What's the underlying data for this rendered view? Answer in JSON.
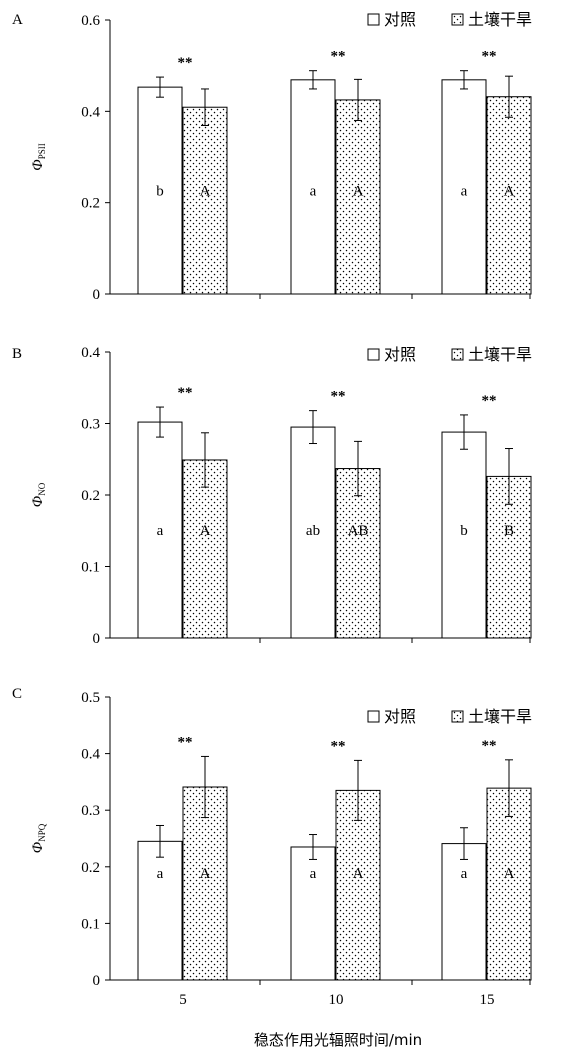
{
  "chart_data": [
    {
      "type": "bar",
      "panel": "A",
      "ylabel": "Φ",
      "ylabel_sub": "PSII",
      "ylim": [
        0,
        0.6
      ],
      "yticks": [
        "0",
        "0.2",
        "0.4",
        "0.6"
      ],
      "categories": [
        "5",
        "10",
        "15"
      ],
      "legend": [
        "对照",
        "土壤干旱"
      ],
      "series": [
        {
          "name": "对照",
          "values": [
            0.453,
            0.469,
            0.469
          ],
          "errors": [
            0.022,
            0.02,
            0.02
          ],
          "letters": [
            "b",
            "a",
            "a"
          ],
          "fill": "#ffffff"
        },
        {
          "name": "土壤干旱",
          "values": [
            0.409,
            0.425,
            0.432
          ],
          "errors": [
            0.04,
            0.045,
            0.045
          ],
          "letters": [
            "A",
            "A",
            "A"
          ],
          "fill": "dots"
        }
      ],
      "significance": [
        "**",
        "**",
        "**"
      ]
    },
    {
      "type": "bar",
      "panel": "B",
      "ylabel": "Φ",
      "ylabel_sub": "NO",
      "ylim": [
        0,
        0.4
      ],
      "yticks": [
        "0",
        "0.1",
        "0.2",
        "0.3",
        "0.4"
      ],
      "categories": [
        "5",
        "10",
        "15"
      ],
      "legend": [
        "对照",
        "土壤干旱"
      ],
      "series": [
        {
          "name": "对照",
          "values": [
            0.302,
            0.295,
            0.288
          ],
          "errors": [
            0.021,
            0.023,
            0.024
          ],
          "letters": [
            "a",
            "ab",
            "b"
          ],
          "fill": "#ffffff"
        },
        {
          "name": "土壤干旱",
          "values": [
            0.249,
            0.237,
            0.226
          ],
          "errors": [
            0.038,
            0.038,
            0.039
          ],
          "letters": [
            "A",
            "AB",
            "B"
          ],
          "fill": "dots"
        }
      ],
      "significance": [
        "**",
        "**",
        "**"
      ]
    },
    {
      "type": "bar",
      "panel": "C",
      "ylabel": "Φ",
      "ylabel_sub": "NPQ",
      "ylim": [
        0,
        0.5
      ],
      "yticks": [
        "0",
        "0.1",
        "0.2",
        "0.3",
        "0.4",
        "0.5"
      ],
      "categories": [
        "5",
        "10",
        "15"
      ],
      "legend": [
        "对照",
        "土壤干旱"
      ],
      "series": [
        {
          "name": "对照",
          "values": [
            0.245,
            0.235,
            0.241
          ],
          "errors": [
            0.028,
            0.022,
            0.028
          ],
          "letters": [
            "a",
            "a",
            "a"
          ],
          "fill": "#ffffff"
        },
        {
          "name": "土壤干旱",
          "values": [
            0.341,
            0.335,
            0.339
          ],
          "errors": [
            0.054,
            0.053,
            0.05
          ],
          "letters": [
            "A",
            "A",
            "A"
          ],
          "fill": "dots"
        }
      ],
      "significance": [
        "**",
        "**",
        "**"
      ]
    }
  ],
  "xlabel": "稳态作用光辐照时间/min"
}
